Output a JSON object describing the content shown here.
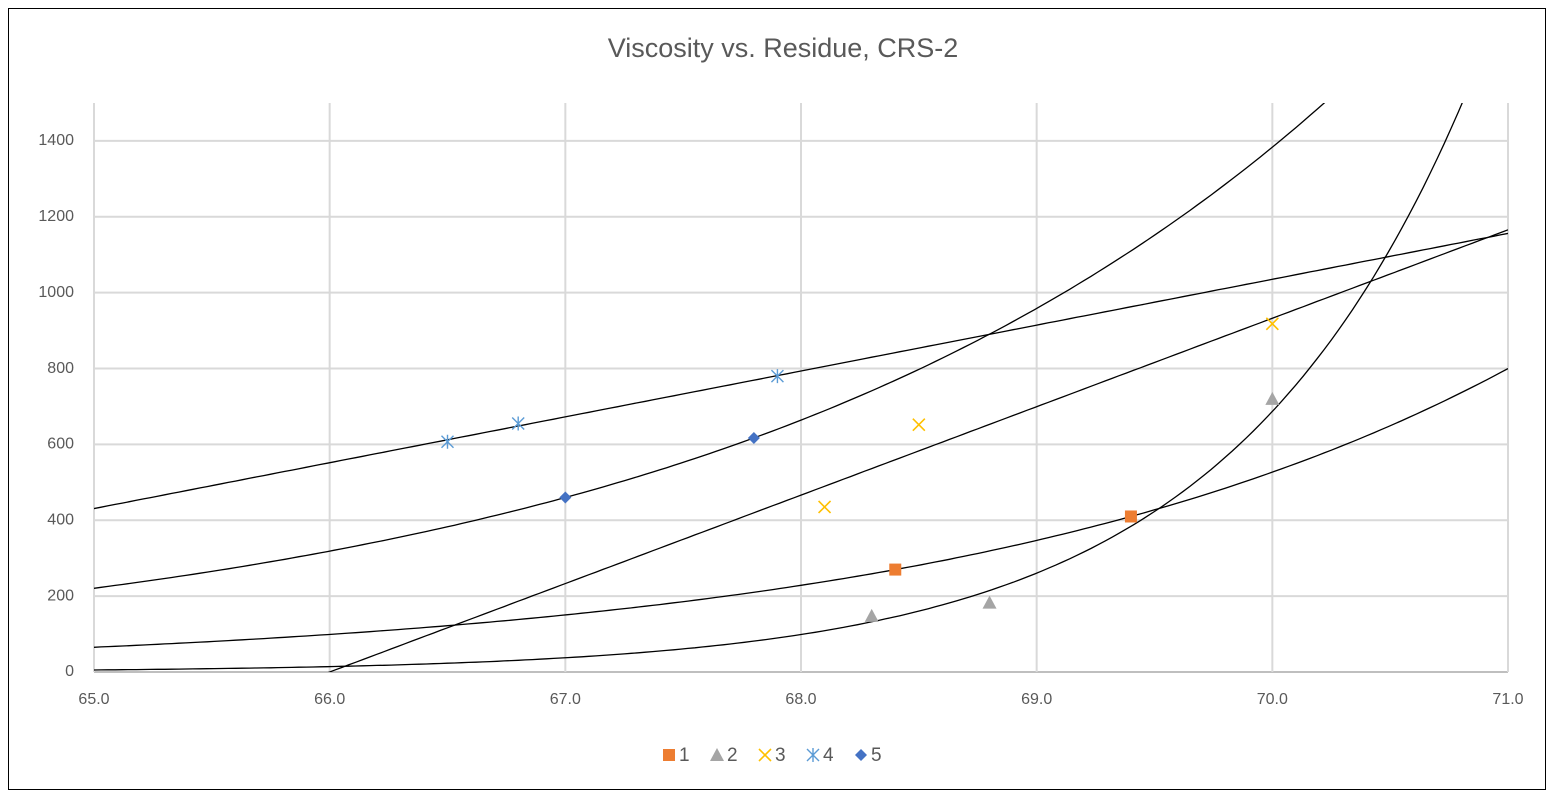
{
  "chart_data": {
    "type": "scatter",
    "title": "Viscosity vs. Residue, CRS-2",
    "xlim": [
      65,
      71
    ],
    "xticks": [
      {
        "value": 65,
        "label": "65.0"
      },
      {
        "value": 66,
        "label": "66.0"
      },
      {
        "value": 67,
        "label": "67.0"
      },
      {
        "value": 68,
        "label": "68.0"
      },
      {
        "value": 69,
        "label": "69.0"
      },
      {
        "value": 70,
        "label": "70.0"
      },
      {
        "value": 71,
        "label": "71.0"
      }
    ],
    "ylim": [
      0,
      1500
    ],
    "yticks": [
      0,
      200,
      400,
      600,
      800,
      1000,
      1200,
      1400
    ],
    "grid": true,
    "legend": "bottom",
    "series": [
      {
        "name": "1",
        "color": "#ed7d31",
        "marker": "square",
        "trendline": "exponential",
        "x": [
          68.4,
          69.4
        ],
        "values": [
          270,
          410
        ]
      },
      {
        "name": "2",
        "color": "#a5a5a5",
        "marker": "triangle",
        "trendline": "exponential",
        "x": [
          68.3,
          68.8,
          70.0
        ],
        "values": [
          148,
          183,
          720
        ]
      },
      {
        "name": "3",
        "color": "#ffc000",
        "marker": "x",
        "trendline": "linear",
        "x": [
          68.1,
          68.5,
          70.0
        ],
        "values": [
          435,
          652,
          918
        ]
      },
      {
        "name": "4",
        "color": "#5b9bd5",
        "marker": "asterisk",
        "trendline": "linear",
        "x": [
          66.5,
          66.8,
          67.9
        ],
        "values": [
          607,
          655,
          780
        ]
      },
      {
        "name": "5",
        "color": "#4472c4",
        "marker": "diamond",
        "trendline": "exponential",
        "x": [
          67.0,
          67.8
        ],
        "values": [
          460,
          617
        ]
      }
    ]
  }
}
